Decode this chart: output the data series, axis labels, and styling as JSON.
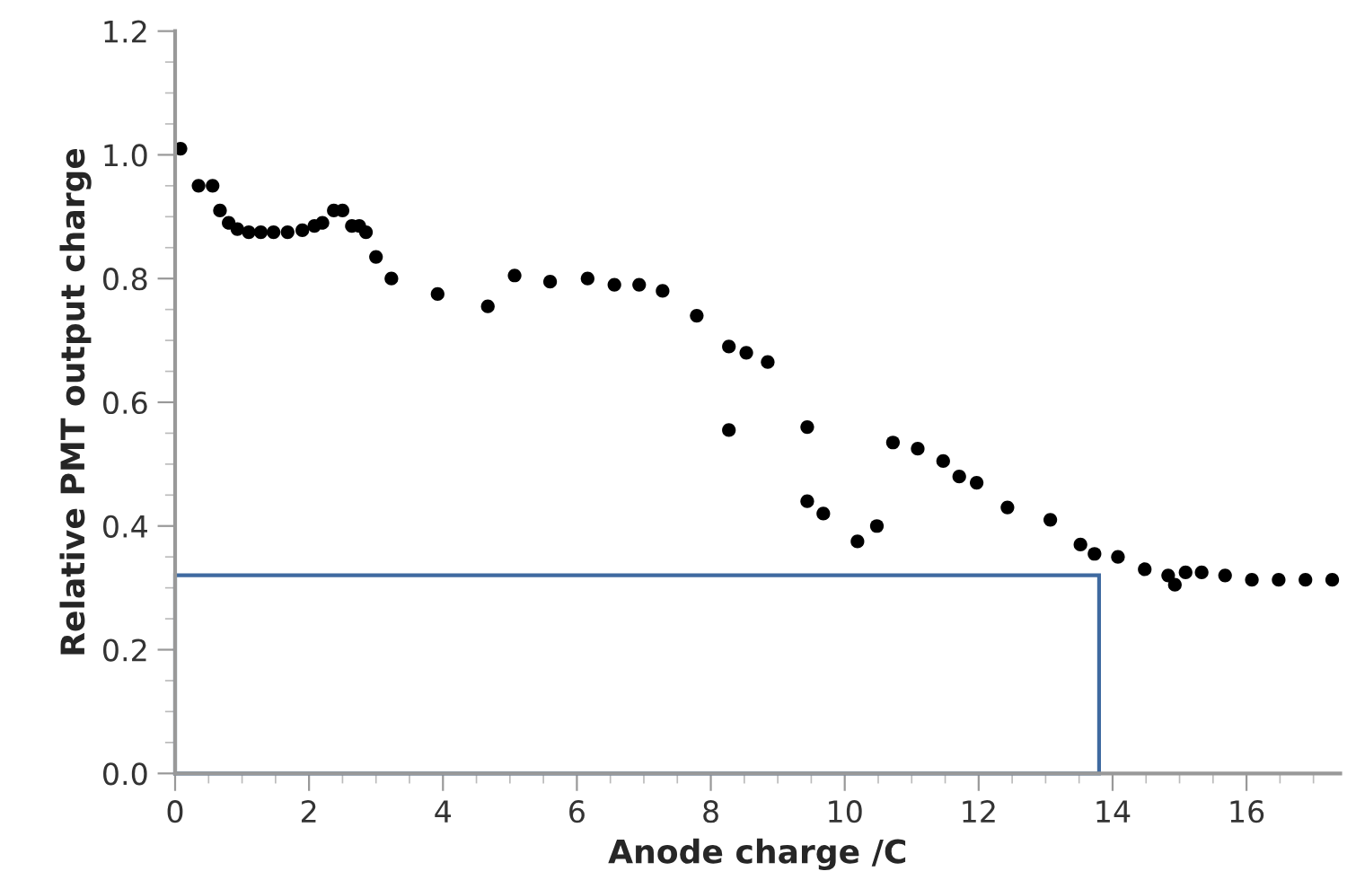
{
  "chart_data": {
    "type": "scatter",
    "xlabel": "Anode charge /C",
    "ylabel": "Relative PMT output charge",
    "xlim": [
      0,
      17.4
    ],
    "ylim": [
      0,
      1.2
    ],
    "xticks": [
      0,
      2,
      4,
      6,
      8,
      10,
      12,
      14,
      16
    ],
    "yticks": [
      {
        "value": 0,
        "label": "0.0"
      },
      0.2,
      0.4,
      0.6,
      0.8,
      {
        "value": 1,
        "label": "1.0"
      },
      1.2
    ],
    "grid": false,
    "legend": false,
    "marker": "circle",
    "series": [
      {
        "color": "#000000",
        "x": [
          0.08,
          0.35,
          0.56,
          0.67,
          0.8,
          0.93,
          1.1,
          1.28,
          1.47,
          1.68,
          1.9,
          2.08,
          2.2,
          2.37,
          2.5,
          2.64,
          2.75,
          2.85,
          3.0,
          3.23,
          3.92,
          4.67,
          5.07,
          5.6,
          6.16,
          6.56,
          6.93,
          7.28,
          7.79,
          8.27,
          8.53,
          8.85,
          8.27,
          9.44,
          9.44,
          9.68,
          10.19,
          10.48,
          10.72,
          11.09,
          11.47,
          11.71,
          11.97,
          12.43,
          13.07,
          13.52,
          13.73,
          14.08,
          14.48,
          14.83,
          14.93,
          15.09,
          15.33,
          15.68,
          16.08,
          16.48,
          16.88,
          17.28
        ],
        "values": [
          1.01,
          0.95,
          0.95,
          0.91,
          0.89,
          0.88,
          0.875,
          0.875,
          0.875,
          0.875,
          0.878,
          0.885,
          0.89,
          0.91,
          0.91,
          0.885,
          0.885,
          0.875,
          0.835,
          0.8,
          0.775,
          0.755,
          0.805,
          0.795,
          0.8,
          0.79,
          0.79,
          0.78,
          0.74,
          0.69,
          0.68,
          0.665,
          0.555,
          0.56,
          0.44,
          0.42,
          0.375,
          0.4,
          0.535,
          0.525,
          0.505,
          0.48,
          0.47,
          0.43,
          0.41,
          0.37,
          0.355,
          0.35,
          0.33,
          0.32,
          0.305,
          0.325,
          0.325,
          0.32,
          0.313,
          0.313,
          0.313,
          0.313
        ]
      }
    ]
  }
}
